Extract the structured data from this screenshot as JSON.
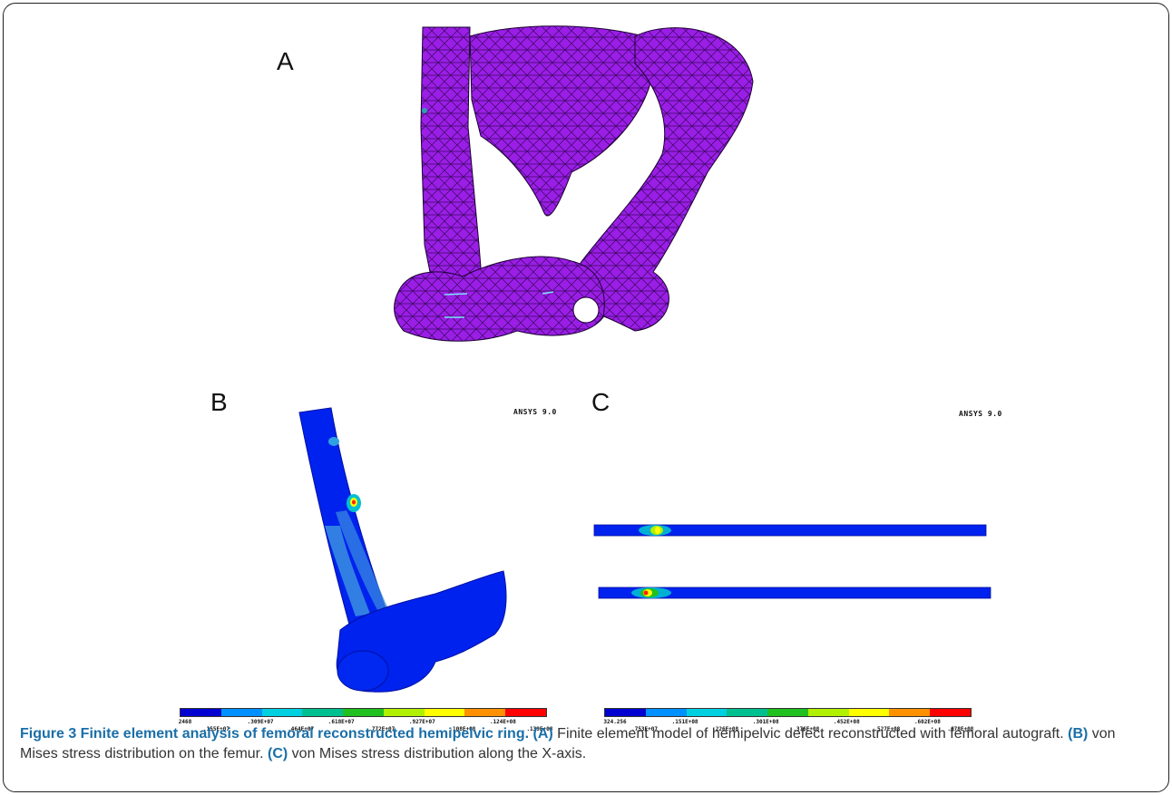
{
  "panels": {
    "a": {
      "letter": "A"
    },
    "b": {
      "letter": "B",
      "software": "ANSYS 9.0",
      "legend_labels": [
        "2468",
        ".155E+07",
        ".309E+07",
        ".464E+07",
        ".618E+07",
        ".772E+07",
        ".927E+07",
        ".108E+08",
        ".124E+08",
        ".139E+08"
      ]
    },
    "c": {
      "letter": "C",
      "software": "ANSYS 9.0",
      "legend_labels": [
        "324.256",
        ".753E+07",
        ".151E+08",
        ".226E+08",
        ".301E+08",
        ".376E+08",
        ".452E+08",
        ".527E+08",
        ".602E+08",
        ".678E+08"
      ]
    }
  },
  "legend_colors": [
    "#0000d0",
    "#0090ff",
    "#00d0e0",
    "#00c090",
    "#20c020",
    "#b0f000",
    "#ffff00",
    "#ff9000",
    "#ff0000"
  ],
  "mesh_color": "#9a1ee6",
  "caption": {
    "title": "Figure 3 Finite element analysis of femoral reconstructed hemipelvic ring.",
    "a_label": "(A)",
    "a_text": " Finite element model of hemipelvic defect reconstructed with femoral autograft. ",
    "b_label": "(B)",
    "b_text": " von Mises stress distribution on the femur. ",
    "c_label": "(C)",
    "c_text": " von Mises stress distribution along the X-axis."
  }
}
